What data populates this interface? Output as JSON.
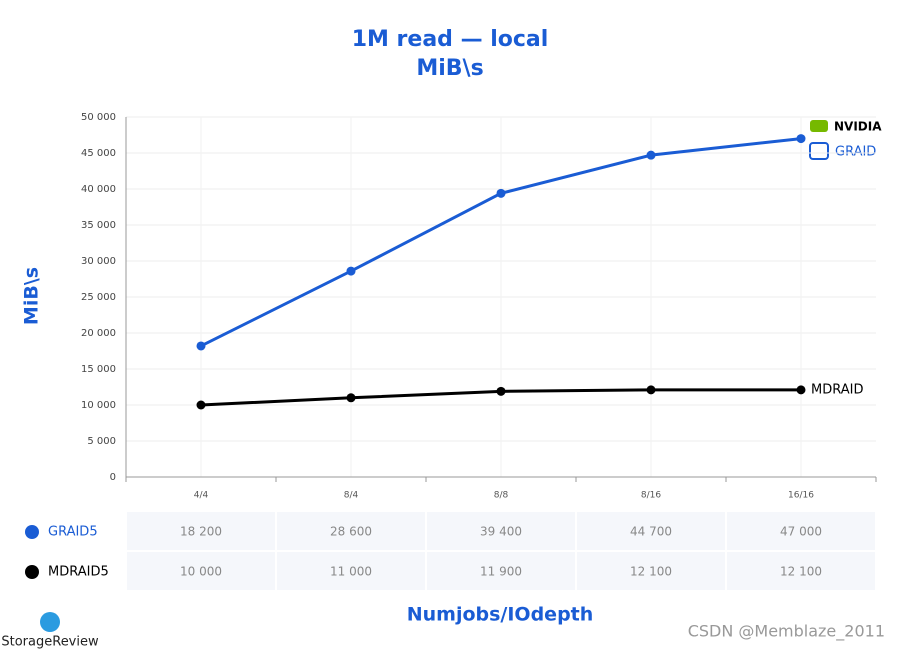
{
  "chart_data": {
    "type": "line",
    "title": "1M read — local",
    "subtitle": "MiB\\s",
    "y_label": "MiB\\s",
    "x_label": "Numjobs/IOdepth",
    "categories": [
      "4/4",
      "8/4",
      "8/8",
      "8/16",
      "16/16"
    ],
    "series": [
      {
        "name": "GRAID5",
        "color": "#1a5cd4",
        "values": [
          18200,
          28600,
          39400,
          44700,
          47000
        ],
        "value_labels": [
          "18 200",
          "28 600",
          "39 400",
          "44 700",
          "47 000"
        ]
      },
      {
        "name": "MDRAID5",
        "color": "#000000",
        "values": [
          10000,
          11000,
          11900,
          12100,
          12100
        ],
        "value_labels": [
          "10 000",
          "11 000",
          "11 900",
          "12 100",
          "12 100"
        ]
      }
    ],
    "annotations": [
      "MDRAID"
    ],
    "logos": [
      "NVIDIA",
      "GRAID",
      "StorageReview"
    ],
    "watermark": "CSDN @Memblaze_2011",
    "ylim": [
      0,
      50000
    ],
    "yticks": [
      0,
      {
        "value": 5000,
        "label": "5 000"
      },
      {
        "value": 10000,
        "label": "10 000"
      },
      {
        "value": 15000,
        "label": "15 000"
      },
      {
        "value": 20000,
        "label": "20 000"
      },
      {
        "value": 25000,
        "label": "25 000"
      },
      {
        "value": 30000,
        "label": "30 000"
      },
      {
        "value": 35000,
        "label": "35 000"
      },
      {
        "value": 40000,
        "label": "40 000"
      },
      {
        "value": 45000,
        "label": "45 000"
      },
      {
        "value": 50000,
        "label": "50 000"
      }
    ],
    "grid": true
  }
}
